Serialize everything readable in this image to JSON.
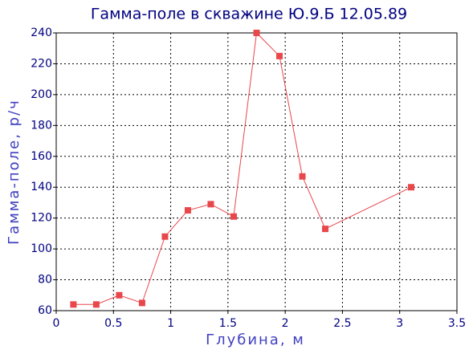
{
  "chart_data": {
    "type": "line",
    "title": "Гамма-поле в скважине Ю.9.Б  12.05.89",
    "x_label": "Глубина, м",
    "y_label": "Гамма-поле, р/ч",
    "x": [
      0.15,
      0.35,
      0.55,
      0.75,
      0.95,
      1.15,
      1.35,
      1.55,
      1.75,
      1.95,
      2.15,
      2.35,
      3.1
    ],
    "series": [
      {
        "name": "Гамма-поле",
        "color": "#e8474c",
        "values": [
          64,
          64,
          70,
          65,
          108,
          125,
          129,
          121,
          240,
          225,
          147,
          113,
          140
        ]
      }
    ],
    "xlim": [
      0,
      3.5
    ],
    "xticks": [
      0,
      0.5,
      1,
      1.5,
      2,
      2.5,
      3,
      3.5
    ],
    "ylim": [
      60,
      240
    ],
    "yticks": [
      60,
      80,
      100,
      120,
      140,
      160,
      180,
      200,
      220,
      240
    ],
    "grid": true
  }
}
